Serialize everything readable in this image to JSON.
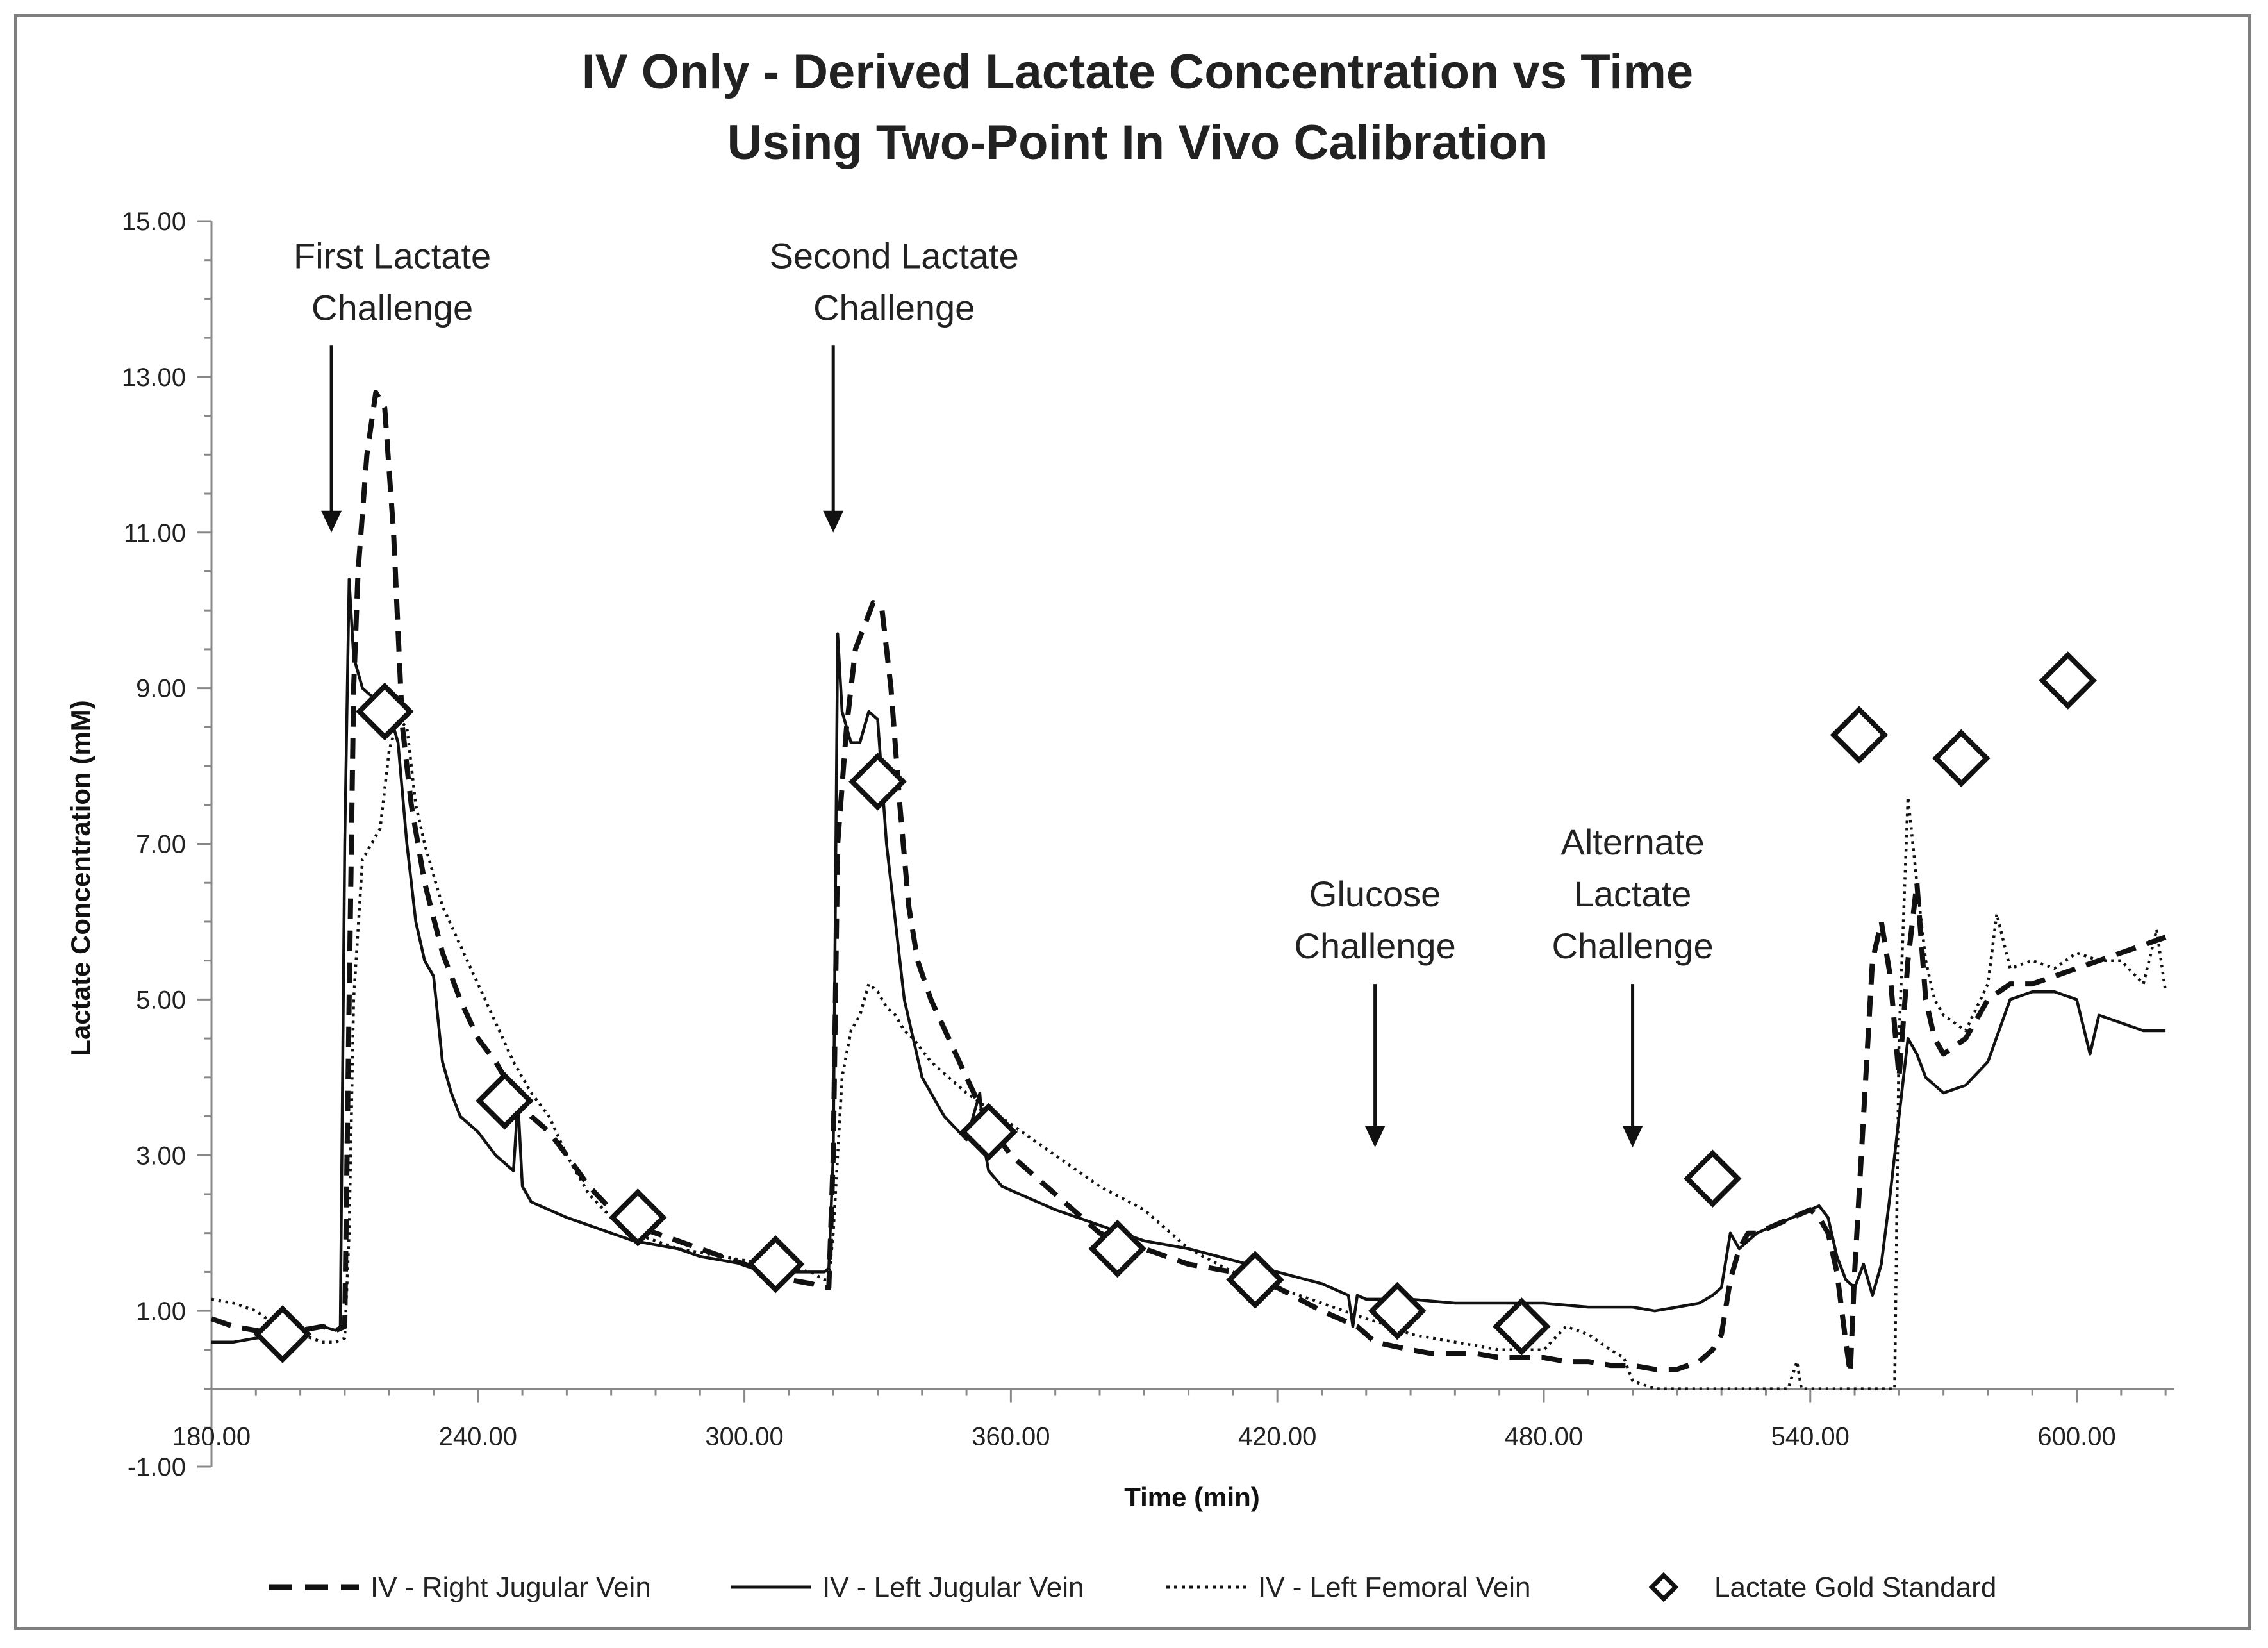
{
  "chart_data": {
    "type": "line",
    "title": [
      "IV Only - Derived Lactate Concentration vs Time",
      "Using Two-Point In Vivo Calibration"
    ],
    "xlabel": "Time (min)",
    "ylabel": "Lactate Concentration (mM)",
    "xlim": [
      180,
      622
    ],
    "ylim": [
      -1,
      15
    ],
    "x_ticks": [
      180,
      240,
      300,
      360,
      420,
      480,
      540,
      600
    ],
    "x_tick_labels": [
      "180.00",
      "240.00",
      "300.00",
      "360.00",
      "420.00",
      "480.00",
      "540.00",
      "600.00"
    ],
    "y_ticks": [
      -1,
      1,
      3,
      5,
      7,
      9,
      11,
      13,
      15
    ],
    "y_tick_labels": [
      "-1.00",
      "1.00",
      "3.00",
      "5.00",
      "7.00",
      "9.00",
      "11.00",
      "13.00",
      "15.00"
    ],
    "x_axis_crosses_y": 0,
    "grid": false,
    "legend_position": "bottom",
    "series": [
      {
        "name": "IV - Right Jugular Vein",
        "style": "dashed",
        "color": "#111111",
        "x": [
          180,
          185,
          190,
          195,
          200,
          205,
          208,
          210,
          211,
          212,
          213,
          215,
          217,
          219,
          221,
          223,
          225,
          228,
          232,
          236,
          240,
          244,
          248,
          252,
          256,
          260,
          265,
          270,
          275,
          280,
          285,
          290,
          295,
          300,
          305,
          310,
          315,
          318,
          319,
          320,
          321,
          323,
          325,
          327,
          329,
          331,
          333,
          335,
          337,
          339,
          342,
          346,
          350,
          355,
          360,
          370,
          380,
          390,
          400,
          410,
          420,
          430,
          438,
          442,
          446,
          450,
          455,
          460,
          465,
          470,
          475,
          480,
          485,
          490,
          495,
          500,
          505,
          510,
          515,
          518,
          520,
          522,
          524,
          526,
          528,
          532,
          536,
          540,
          542,
          544,
          546,
          548,
          549,
          550,
          552,
          554,
          556,
          558,
          560,
          562,
          564,
          566,
          568,
          570,
          575,
          580,
          585,
          590,
          595,
          600,
          605,
          610,
          615,
          620
        ],
        "y": [
          0.9,
          0.8,
          0.75,
          0.7,
          0.75,
          0.8,
          0.75,
          0.8,
          5.0,
          9.0,
          10.5,
          12.0,
          12.8,
          12.6,
          11.0,
          8.5,
          7.5,
          6.5,
          5.6,
          5.0,
          4.5,
          4.2,
          3.8,
          3.5,
          3.3,
          3.0,
          2.6,
          2.3,
          2.1,
          2.0,
          1.9,
          1.8,
          1.7,
          1.6,
          1.5,
          1.4,
          1.35,
          1.3,
          1.3,
          3.0,
          7.0,
          8.5,
          9.5,
          9.8,
          10.1,
          10.0,
          9.0,
          7.5,
          6.2,
          5.5,
          5.0,
          4.5,
          4.0,
          3.4,
          3.0,
          2.5,
          2.0,
          1.8,
          1.6,
          1.5,
          1.3,
          1.0,
          0.8,
          0.6,
          0.55,
          0.5,
          0.45,
          0.45,
          0.45,
          0.4,
          0.4,
          0.4,
          0.35,
          0.35,
          0.3,
          0.3,
          0.25,
          0.25,
          0.35,
          0.5,
          0.7,
          1.4,
          1.8,
          2.0,
          2.0,
          2.1,
          2.2,
          2.3,
          2.2,
          2.0,
          1.5,
          0.6,
          0.2,
          1.5,
          3.5,
          5.5,
          6.0,
          5.3,
          4.0,
          5.5,
          6.5,
          5.0,
          4.5,
          4.3,
          4.5,
          5.0,
          5.2,
          5.2,
          5.3,
          5.4,
          5.5,
          5.6,
          5.7,
          5.8
        ]
      },
      {
        "name": "IV - Left Jugular Vein",
        "style": "solid",
        "color": "#111111",
        "x": [
          180,
          185,
          190,
          195,
          200,
          205,
          208,
          209,
          210,
          211,
          212,
          214,
          216,
          218,
          220,
          222,
          224,
          226,
          228,
          230,
          232,
          234,
          236,
          240,
          244,
          248,
          249,
          250,
          252,
          256,
          260,
          265,
          270,
          275,
          280,
          285,
          290,
          295,
          300,
          305,
          310,
          315,
          318,
          319,
          320,
          321,
          322,
          324,
          326,
          328,
          330,
          332,
          334,
          336,
          338,
          340,
          345,
          350,
          353,
          354,
          355,
          358,
          362,
          366,
          370,
          375,
          380,
          390,
          400,
          410,
          420,
          430,
          436,
          437,
          438,
          440,
          445,
          450,
          460,
          470,
          480,
          490,
          500,
          505,
          510,
          515,
          518,
          520,
          522,
          524,
          526,
          528,
          532,
          536,
          540,
          542,
          544,
          546,
          548,
          550,
          552,
          554,
          556,
          558,
          560,
          562,
          564,
          566,
          570,
          575,
          580,
          585,
          590,
          595,
          600,
          603,
          605,
          610,
          615,
          620
        ],
        "y": [
          0.6,
          0.6,
          0.65,
          0.7,
          0.75,
          0.8,
          0.75,
          0.8,
          7.0,
          10.4,
          9.4,
          9.0,
          8.9,
          8.6,
          8.7,
          8.3,
          7.0,
          6.0,
          5.5,
          5.3,
          4.2,
          3.8,
          3.5,
          3.3,
          3.0,
          2.8,
          3.7,
          2.6,
          2.4,
          2.3,
          2.2,
          2.1,
          2.0,
          1.9,
          1.85,
          1.8,
          1.7,
          1.65,
          1.6,
          1.55,
          1.5,
          1.5,
          1.5,
          1.55,
          3.0,
          9.7,
          8.7,
          8.3,
          8.3,
          8.7,
          8.6,
          7.0,
          6.0,
          5.0,
          4.5,
          4.0,
          3.5,
          3.2,
          3.8,
          3.1,
          2.8,
          2.6,
          2.5,
          2.4,
          2.3,
          2.2,
          2.1,
          1.9,
          1.8,
          1.65,
          1.5,
          1.35,
          1.2,
          0.8,
          1.2,
          1.15,
          1.15,
          1.15,
          1.1,
          1.1,
          1.1,
          1.05,
          1.05,
          1.0,
          1.05,
          1.1,
          1.2,
          1.3,
          2.0,
          1.8,
          1.9,
          2.0,
          2.1,
          2.2,
          2.3,
          2.35,
          2.2,
          1.7,
          1.4,
          1.3,
          1.6,
          1.2,
          1.6,
          2.5,
          3.5,
          4.5,
          4.3,
          4.0,
          3.8,
          3.9,
          4.2,
          5.0,
          5.1,
          5.1,
          5.0,
          4.3,
          4.8,
          4.7,
          4.6,
          4.6
        ]
      },
      {
        "name": "IV - Left Femoral Vein",
        "style": "dotted",
        "color": "#111111",
        "x": [
          180,
          185,
          190,
          195,
          200,
          205,
          208,
          210,
          211,
          212,
          214,
          216,
          218,
          220,
          222,
          224,
          226,
          228,
          232,
          236,
          240,
          244,
          248,
          252,
          256,
          260,
          265,
          270,
          275,
          280,
          285,
          290,
          295,
          300,
          305,
          310,
          315,
          318,
          319,
          320,
          322,
          324,
          326,
          328,
          330,
          332,
          334,
          336,
          338,
          342,
          346,
          350,
          355,
          360,
          365,
          370,
          380,
          390,
          400,
          410,
          420,
          430,
          440,
          446,
          450,
          460,
          470,
          480,
          485,
          490,
          495,
          498,
          500,
          505,
          510,
          520,
          530,
          535,
          537,
          538,
          540,
          545,
          550,
          552,
          554,
          556,
          558,
          559,
          560,
          562,
          564,
          566,
          568,
          570,
          575,
          580,
          582,
          585,
          590,
          595,
          600,
          605,
          610,
          615,
          618,
          620
        ],
        "y": [
          1.15,
          1.1,
          1.0,
          0.8,
          0.7,
          0.6,
          0.6,
          0.65,
          2.0,
          5.0,
          6.8,
          7.0,
          7.2,
          8.2,
          8.6,
          8.5,
          7.5,
          7.0,
          6.2,
          5.7,
          5.2,
          4.7,
          4.2,
          3.8,
          3.5,
          3.0,
          2.5,
          2.2,
          2.0,
          1.9,
          1.8,
          1.75,
          1.7,
          1.65,
          1.6,
          1.55,
          1.5,
          1.4,
          1.4,
          2.0,
          4.0,
          4.6,
          4.8,
          5.2,
          5.1,
          4.9,
          4.8,
          4.6,
          4.5,
          4.2,
          4.0,
          3.8,
          3.6,
          3.4,
          3.2,
          3.0,
          2.6,
          2.3,
          1.8,
          1.5,
          1.3,
          1.1,
          0.9,
          0.8,
          0.7,
          0.6,
          0.5,
          0.5,
          0.8,
          0.7,
          0.5,
          0.4,
          0.1,
          0.0,
          0.0,
          0.0,
          0.0,
          0.0,
          0.35,
          0.0,
          0.0,
          0.0,
          0.0,
          0.0,
          0.0,
          0.0,
          0.0,
          0.0,
          4.5,
          7.6,
          6.5,
          5.5,
          5.0,
          4.8,
          4.6,
          5.2,
          6.1,
          5.4,
          5.5,
          5.4,
          5.6,
          5.5,
          5.5,
          5.2,
          5.9,
          5.1
        ]
      }
    ],
    "gold_standard": {
      "name": "Lactate Gold Standard",
      "marker": "diamond",
      "x": [
        196,
        219,
        246,
        276,
        307,
        330,
        355,
        384,
        415,
        447,
        475,
        518,
        551,
        574,
        598
      ],
      "y": [
        0.7,
        8.7,
        3.7,
        2.2,
        1.6,
        7.8,
        3.3,
        1.8,
        1.4,
        1.0,
        0.8,
        2.7,
        8.4,
        8.1,
        9.1
      ]
    },
    "annotations": [
      {
        "lines": [
          "First Lactate",
          "Challenge"
        ],
        "arrow_x": 207,
        "arrow_from": 13.4,
        "arrow_to": 11.0
      },
      {
        "lines": [
          "Second Lactate",
          "Challenge"
        ],
        "arrow_x": 320,
        "arrow_from": 13.4,
        "arrow_to": 11.0
      },
      {
        "lines": [
          "Glucose",
          "Challenge"
        ],
        "arrow_x": 442,
        "arrow_from": 5.2,
        "arrow_to": 3.1
      },
      {
        "lines": [
          "Alternate",
          "Lactate",
          "Challenge"
        ],
        "arrow_x": 500,
        "arrow_from": 5.2,
        "arrow_to": 3.1
      }
    ]
  }
}
